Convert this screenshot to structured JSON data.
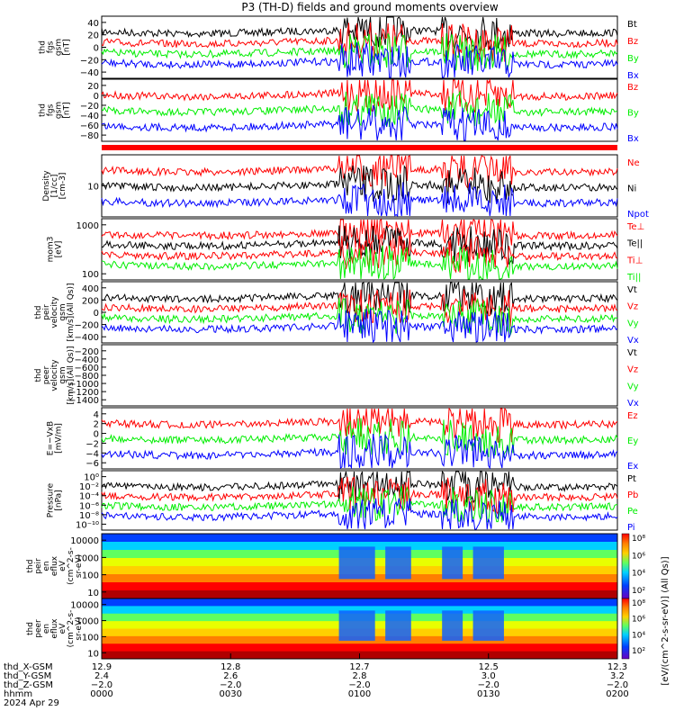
{
  "title": "P3 (TH-D) fields and ground moments overview",
  "colors": {
    "black": "#000000",
    "red": "#ff0000",
    "green": "#00ee00",
    "blue": "#0000ff"
  },
  "chart_data": [
    {
      "type": "line",
      "ylabel": [
        "thd",
        "fgs",
        "gsm",
        "[nT]"
      ],
      "yticks": [
        "40",
        "20",
        "0",
        "−20",
        "−40"
      ],
      "ylim": [
        -40,
        45
      ],
      "series": [
        {
          "name": "Bt",
          "color": "#000000"
        },
        {
          "name": "Bz",
          "color": "#ff0000"
        },
        {
          "name": "By",
          "color": "#00ee00"
        },
        {
          "name": "Bx",
          "color": "#0000ff"
        }
      ]
    },
    {
      "type": "line",
      "ylabel": [
        "thd",
        "fgs",
        "gsm",
        "[nT]"
      ],
      "yticks": [
        "20",
        "0",
        "−20",
        "−40",
        "−60",
        "−80"
      ],
      "ylim": [
        -95,
        28
      ],
      "series": [
        {
          "name": "Bz",
          "color": "#ff0000"
        },
        {
          "name": "By",
          "color": "#00ee00"
        },
        {
          "name": "Bx",
          "color": "#0000ff"
        }
      ]
    },
    {
      "type": "line",
      "ylabel": [
        "Density",
        "[1/cc]",
        "[cm-3]"
      ],
      "yticks": [
        "10"
      ],
      "ylim": [
        1,
        100
      ],
      "series": [
        {
          "name": "Ne",
          "color": "#ff0000"
        },
        {
          "name": "Ni",
          "color": "#000000"
        },
        {
          "name": "Npot",
          "color": "#0000ff"
        }
      ]
    },
    {
      "type": "line",
      "ylabel": [
        "mom3",
        "[eV]"
      ],
      "yticks": [
        "1000",
        "100"
      ],
      "ylim": [
        10,
        1500
      ],
      "series": [
        {
          "name": "Te⊥",
          "color": "#ff0000"
        },
        {
          "name": "Te||",
          "color": "#000000"
        },
        {
          "name": "Ti⊥",
          "color": "#ff0000"
        },
        {
          "name": "Ti||",
          "color": "#00ee00"
        }
      ]
    },
    {
      "type": "line",
      "ylabel": [
        "thd",
        "peir",
        "velocity",
        "gsm",
        "[km/s](All Qs)]"
      ],
      "yticks": [
        "400",
        "200",
        "0",
        "−200",
        "−400"
      ],
      "ylim": [
        -420,
        430
      ],
      "series": [
        {
          "name": "Vt",
          "color": "#000000"
        },
        {
          "name": "Vz",
          "color": "#ff0000"
        },
        {
          "name": "Vy",
          "color": "#00ee00"
        },
        {
          "name": "Vx",
          "color": "#0000ff"
        }
      ]
    },
    {
      "type": "line",
      "ylabel": [
        "thd",
        "peer",
        "velocity",
        "gsm",
        "[km/s](All Qs)]"
      ],
      "yticks": [
        "−200",
        "−400",
        "−600",
        "−800",
        "−1000",
        "−1200",
        "−1400"
      ],
      "ylim": [
        -1500,
        -150
      ],
      "series": [
        {
          "name": "Vt",
          "color": "#000000"
        },
        {
          "name": "Vz",
          "color": "#ff0000"
        },
        {
          "name": "Vy",
          "color": "#00ee00"
        },
        {
          "name": "Vx",
          "color": "#0000ff"
        }
      ]
    },
    {
      "type": "line",
      "ylabel": [
        "E=−VxB",
        "[mV/m]"
      ],
      "yticks": [
        "4",
        "2",
        "0",
        "−2",
        "−4",
        "−6"
      ],
      "ylim": [
        -8,
        5
      ],
      "series": [
        {
          "name": "Ez",
          "color": "#ff0000"
        },
        {
          "name": "Ey",
          "color": "#00ee00"
        },
        {
          "name": "Ex",
          "color": "#0000ff"
        }
      ]
    },
    {
      "type": "line",
      "ylabel": [
        "Pressure",
        "[nPa]"
      ],
      "yticks": [
        "10⁰",
        "10⁻²",
        "10⁻⁴",
        "10⁻⁶",
        "10⁻⁸",
        "10⁻¹⁰"
      ],
      "ylim": [
        -11,
        1
      ],
      "series": [
        {
          "name": "Pt",
          "color": "#000000"
        },
        {
          "name": "Pb",
          "color": "#ff0000"
        },
        {
          "name": "Pe",
          "color": "#00ee00"
        },
        {
          "name": "Pi",
          "color": "#0000ff"
        }
      ]
    },
    {
      "type": "heatmap",
      "ylabel": [
        "thd",
        "peir",
        "en",
        "eflux",
        "eV",
        "(cm^2-s-",
        "sr-eV)"
      ],
      "yticks": [
        "10000",
        "1000",
        "100",
        "10"
      ],
      "colorbar": {
        "ticks": [
          "10⁸",
          "10⁶",
          "10⁴",
          "10²"
        ]
      }
    },
    {
      "type": "heatmap",
      "ylabel": [
        "thd",
        "peer",
        "en",
        "eflux",
        "eV",
        "(cm^2-s-",
        "sr-eV)"
      ],
      "yticks": [
        "10000",
        "1000",
        "100",
        "10"
      ],
      "colorbar": {
        "ticks": [
          "10⁸",
          "10⁶",
          "10⁴",
          "10²"
        ]
      }
    }
  ],
  "colorbar_label": "[eV/(cm^2-s-sr-eV)] (All Qs)]",
  "xaxis": {
    "row_labels": [
      "thd_X-GSM",
      "thd_Y-GSM",
      "thd_Z-GSM",
      "hhmm",
      "2024 Apr 29"
    ],
    "ticks": [
      {
        "x": "12.9",
        "y": "2.4",
        "z": "−2.0",
        "hhmm": "0000"
      },
      {
        "x": "12.8",
        "y": "2.6",
        "z": "−2.0",
        "hhmm": "0030"
      },
      {
        "x": "12.7",
        "y": "2.8",
        "z": "−2.0",
        "hhmm": "0100"
      },
      {
        "x": "12.5",
        "y": "3.0",
        "z": "−2.0",
        "hhmm": "0130"
      },
      {
        "x": "12.3",
        "y": "3.2",
        "z": "−2.0",
        "hhmm": "0200"
      }
    ]
  }
}
